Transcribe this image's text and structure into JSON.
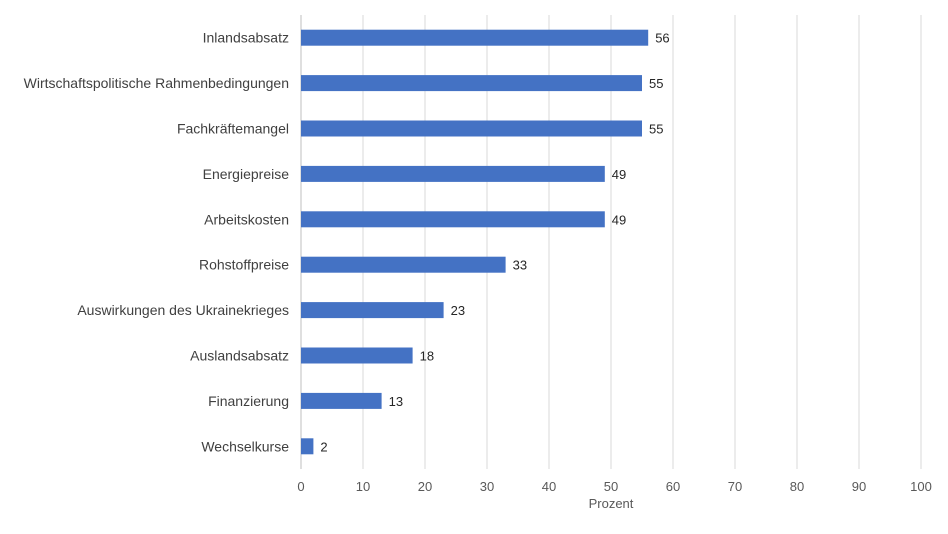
{
  "chart_data": {
    "type": "bar",
    "orientation": "horizontal",
    "categories": [
      "Inlandsabsatz",
      "Wirtschaftspolitische Rahmenbedingungen",
      "Fachkräftemangel",
      "Energiepreise",
      "Arbeitskosten",
      "Rohstoffpreise",
      "Auswirkungen des Ukrainekrieges",
      "Auslandsabsatz",
      "Finanzierung",
      "Wechselkurse"
    ],
    "values": [
      56,
      55,
      55,
      49,
      49,
      33,
      23,
      18,
      13,
      2
    ],
    "xlabel": "Prozent",
    "ylabel": "",
    "xlim": [
      0,
      100
    ],
    "xticks": [
      0,
      10,
      20,
      30,
      40,
      50,
      60,
      70,
      80,
      90,
      100
    ],
    "grid": true,
    "legend": "none",
    "data_labels": true,
    "colors": {
      "bar": "#4472c4",
      "grid": "#d9d9d9",
      "axis": "#bfbfbf"
    }
  }
}
